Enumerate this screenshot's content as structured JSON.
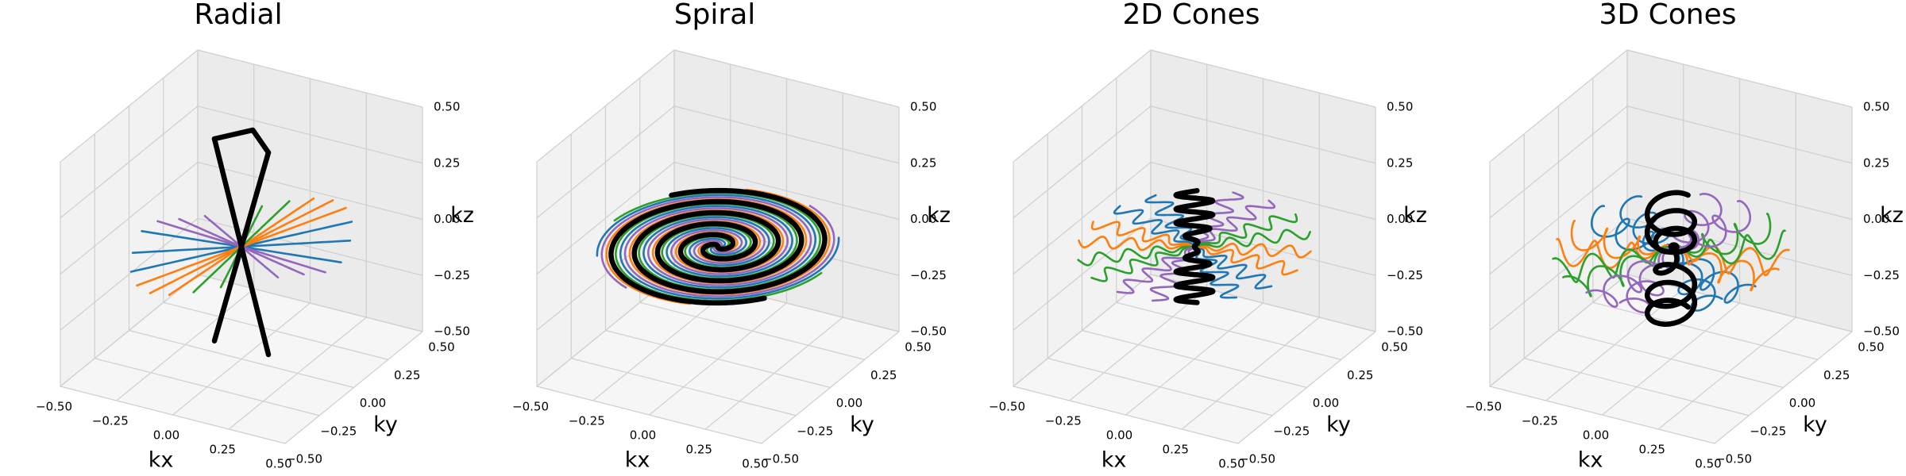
{
  "chart_data": [
    {
      "type": "line3d",
      "pattern": "radial",
      "title": "Radial",
      "xlabel": "kx",
      "ylabel": "ky",
      "zlabel": "kz",
      "xlim": [
        -0.5,
        0.5
      ],
      "ylim": [
        -0.5,
        0.5
      ],
      "zlim": [
        -0.5,
        0.5
      ],
      "xticks": [
        {
          "value": -0.5,
          "label": "−0.50"
        },
        {
          "value": -0.25,
          "label": "−0.25"
        },
        {
          "value": 0,
          "label": "0.00"
        },
        0.25,
        {
          "value": 0.5,
          "label": "0.50"
        }
      ],
      "yticks": [
        {
          "value": -0.5,
          "label": "−0.50"
        },
        {
          "value": -0.25,
          "label": "−0.25"
        },
        {
          "value": 0,
          "label": "0.00"
        },
        0.25,
        {
          "value": 0.5,
          "label": "0.50"
        }
      ],
      "zticks": [
        {
          "value": -0.5,
          "label": "−0.50"
        },
        {
          "value": -0.25,
          "label": "−0.25"
        },
        {
          "value": 0,
          "label": "0.00"
        },
        0.25,
        {
          "value": 0.5,
          "label": "0.50"
        }
      ],
      "colors": [
        "#1f77b4",
        "#ff7f0e",
        "#2ca02c",
        "#9467bd",
        "#000000"
      ],
      "grid": true
    },
    {
      "type": "line3d",
      "pattern": "spiral",
      "title": "Spiral",
      "xlabel": "kx",
      "ylabel": "ky",
      "zlabel": "kz",
      "xlim": [
        -0.5,
        0.5
      ],
      "ylim": [
        -0.5,
        0.5
      ],
      "zlim": [
        -0.5,
        0.5
      ],
      "xticks": [
        {
          "value": -0.5,
          "label": "−0.50"
        },
        {
          "value": -0.25,
          "label": "−0.25"
        },
        {
          "value": 0,
          "label": "0.00"
        },
        0.25,
        {
          "value": 0.5,
          "label": "0.50"
        }
      ],
      "yticks": [
        {
          "value": -0.5,
          "label": "−0.50"
        },
        {
          "value": -0.25,
          "label": "−0.25"
        },
        {
          "value": 0,
          "label": "0.00"
        },
        0.25,
        {
          "value": 0.5,
          "label": "0.50"
        }
      ],
      "zticks": [
        {
          "value": -0.5,
          "label": "−0.50"
        },
        {
          "value": -0.25,
          "label": "−0.25"
        },
        {
          "value": 0,
          "label": "0.00"
        },
        0.25,
        {
          "value": 0.5,
          "label": "0.50"
        }
      ],
      "colors": [
        "#1f77b4",
        "#ff7f0e",
        "#2ca02c",
        "#9467bd",
        "#000000"
      ],
      "grid": true
    },
    {
      "type": "line3d",
      "pattern": "cones2d",
      "title": "2D Cones",
      "xlabel": "kx",
      "ylabel": "ky",
      "zlabel": "kz",
      "xlim": [
        -0.5,
        0.5
      ],
      "ylim": [
        -0.5,
        0.5
      ],
      "zlim": [
        -0.5,
        0.5
      ],
      "xticks": [
        {
          "value": -0.5,
          "label": "−0.50"
        },
        {
          "value": -0.25,
          "label": "−0.25"
        },
        {
          "value": 0,
          "label": "0.00"
        },
        0.25,
        {
          "value": 0.5,
          "label": "0.50"
        }
      ],
      "yticks": [
        {
          "value": -0.5,
          "label": "−0.50"
        },
        {
          "value": -0.25,
          "label": "−0.25"
        },
        {
          "value": 0,
          "label": "0.00"
        },
        0.25,
        {
          "value": 0.5,
          "label": "0.50"
        }
      ],
      "zticks": [
        {
          "value": -0.5,
          "label": "−0.50"
        },
        {
          "value": -0.25,
          "label": "−0.25"
        },
        {
          "value": 0,
          "label": "0.00"
        },
        0.25,
        {
          "value": 0.5,
          "label": "0.50"
        }
      ],
      "colors": [
        "#1f77b4",
        "#ff7f0e",
        "#2ca02c",
        "#9467bd",
        "#000000"
      ],
      "grid": true
    },
    {
      "type": "line3d",
      "pattern": "cones3d",
      "title": "3D Cones",
      "xlabel": "kx",
      "ylabel": "ky",
      "zlabel": "kz",
      "xlim": [
        -0.5,
        0.5
      ],
      "ylim": [
        -0.5,
        0.5
      ],
      "zlim": [
        -0.5,
        0.5
      ],
      "xticks": [
        {
          "value": -0.5,
          "label": "−0.50"
        },
        {
          "value": -0.25,
          "label": "−0.25"
        },
        {
          "value": 0,
          "label": "0.00"
        },
        0.25,
        {
          "value": 0.5,
          "label": "0.50"
        }
      ],
      "yticks": [
        {
          "value": -0.5,
          "label": "−0.50"
        },
        {
          "value": -0.25,
          "label": "−0.25"
        },
        {
          "value": 0,
          "label": "0.00"
        },
        0.25,
        {
          "value": 0.5,
          "label": "0.50"
        }
      ],
      "zticks": [
        {
          "value": -0.5,
          "label": "−0.50"
        },
        {
          "value": -0.25,
          "label": "−0.25"
        },
        {
          "value": 0,
          "label": "0.00"
        },
        0.25,
        {
          "value": 0.5,
          "label": "0.50"
        }
      ],
      "colors": [
        "#1f77b4",
        "#ff7f0e",
        "#2ca02c",
        "#9467bd",
        "#000000"
      ],
      "grid": true
    }
  ]
}
